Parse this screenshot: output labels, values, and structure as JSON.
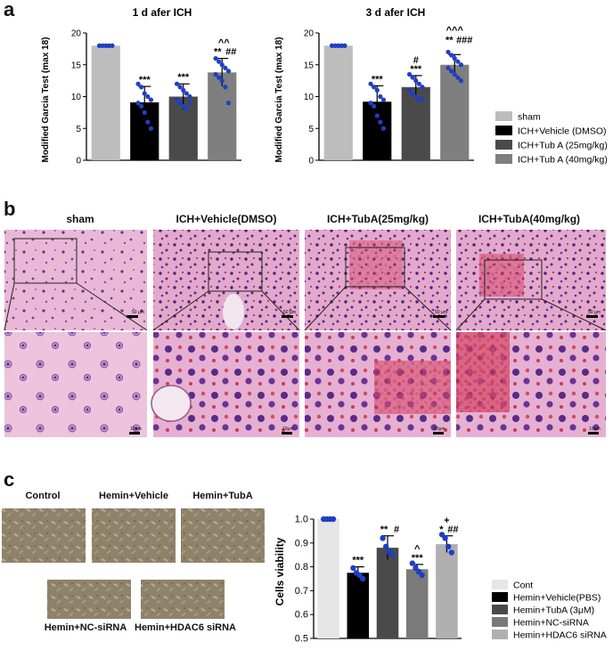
{
  "panel_a": {
    "letter": "a",
    "chart_left": {
      "title": "1 d afer ICH",
      "ylabel": "Modified Garcia Test (max 18)"
    },
    "chart_right": {
      "title": "3 d afer ICH",
      "ylabel": "Modified Garcia Test (max 18)"
    },
    "legend": [
      "sham",
      "ICH+Vehicle (DMSO)",
      "ICH+Tub A (25mg/kg)",
      "ICH+Tub A (40mg/kg)"
    ],
    "colors": [
      "#bdbdbd",
      "#000000",
      "#4a4a4a",
      "#7f7f7f"
    ],
    "dot_color": "#1f3fc4"
  },
  "panel_b": {
    "letter": "b",
    "labels": [
      "sham",
      "ICH+Vehicle(DMSO)",
      "ICH+TubA(25mg/kg)",
      "ICH+TubA(40mg/kg)"
    ],
    "scale_top": "50 μm",
    "scale_bottom": "10μm"
  },
  "panel_c": {
    "letter": "c",
    "image_labels": [
      "Control",
      "Hemin+Vehicle",
      "Hemin+TubA",
      "Hemin+NC-siRNA",
      "Hemin+HDAC6 siRNA"
    ],
    "ylabel": "Cells viability",
    "legend": [
      "Cont",
      "Hemin+Vehicle(PBS)",
      "Hemin+TubA (3μM)",
      "Hemin+NC-siRNA",
      "Hemin+HDAC6 siRNA"
    ],
    "colors": [
      "#e6e6e6",
      "#000000",
      "#4a4a4a",
      "#7a7a7a",
      "#b0b0b0"
    ]
  },
  "chart_data": [
    {
      "type": "bar",
      "title": "1 d afer ICH",
      "xlabel": "",
      "ylabel": "Modified Garcia Test (max 18)",
      "ylim": [
        0,
        20
      ],
      "yticks": [
        0,
        5,
        10,
        15,
        20
      ],
      "categories": [
        "sham",
        "ICH+Vehicle (DMSO)",
        "ICH+Tub A (25mg/kg)",
        "ICH+Tub A (40mg/kg)"
      ],
      "values": [
        18,
        9.1,
        10.0,
        13.8
      ],
      "errors": [
        0.1,
        2.5,
        2.0,
        2.2
      ],
      "points": [
        [
          18,
          18,
          18,
          18,
          18,
          18,
          18,
          18,
          18,
          18
        ],
        [
          12,
          11.5,
          10.5,
          10,
          9.5,
          9,
          8.5,
          7.5,
          6,
          5
        ],
        [
          12,
          11.5,
          11,
          10.5,
          10,
          9.5,
          9,
          8.5,
          8,
          9
        ],
        [
          16,
          15.5,
          15,
          14.5,
          14,
          13.5,
          13,
          12.5,
          11.5,
          9
        ]
      ],
      "annotations": [
        "",
        "***",
        "***",
        "**",
        "##",
        "^^"
      ]
    },
    {
      "type": "bar",
      "title": "3 d afer ICH",
      "xlabel": "",
      "ylabel": "Modified Garcia Test (max 18)",
      "ylim": [
        0,
        20
      ],
      "yticks": [
        0,
        5,
        10,
        15,
        20
      ],
      "categories": [
        "sham",
        "ICH+Vehicle (DMSO)",
        "ICH+Tub A (25mg/kg)",
        "ICH+Tub A (40mg/kg)"
      ],
      "values": [
        18,
        9.2,
        11.5,
        15.0
      ],
      "errors": [
        0.1,
        2.5,
        1.8,
        1.6
      ],
      "points": [
        [
          18,
          18,
          18,
          18,
          18,
          18,
          18,
          18,
          18,
          18
        ],
        [
          12,
          11.5,
          11,
          10,
          9.5,
          9,
          8.5,
          7,
          6,
          5
        ],
        [
          13.5,
          13,
          12.5,
          12,
          11.5,
          11,
          10.5,
          10,
          9.5,
          9.5
        ],
        [
          17,
          16.5,
          16,
          15.5,
          15,
          14.5,
          14,
          13.5,
          13,
          12.5
        ]
      ],
      "annotations": [
        "",
        "***",
        "#",
        "***",
        "^^^",
        "**",
        "###"
      ]
    },
    {
      "type": "bar",
      "title": "",
      "xlabel": "",
      "ylabel": "Cells viability",
      "ylim": [
        0.5,
        1.0
      ],
      "yticks": [
        0.5,
        0.6,
        0.7,
        0.8,
        0.9,
        1.0
      ],
      "categories": [
        "Cont",
        "Hemin+Vehicle(PBS)",
        "Hemin+TubA (3μM)",
        "Hemin+NC-siRNA",
        "Hemin+HDAC6 siRNA"
      ],
      "values": [
        1.0,
        0.775,
        0.88,
        0.79,
        0.895
      ],
      "errors": [
        0,
        0.025,
        0.05,
        0.02,
        0.035
      ],
      "points": [
        [
          1.0,
          1.0,
          1.0,
          1.0
        ],
        [
          0.795,
          0.775,
          0.765,
          0.75
        ],
        [
          0.92,
          0.885,
          0.865,
          0.85
        ],
        [
          0.815,
          0.795,
          0.78,
          0.765
        ],
        [
          0.935,
          0.92,
          0.885,
          0.86
        ]
      ],
      "annotations": [
        "",
        "***",
        "**",
        "#",
        "^",
        "***",
        "+",
        "*",
        "##"
      ]
    }
  ]
}
